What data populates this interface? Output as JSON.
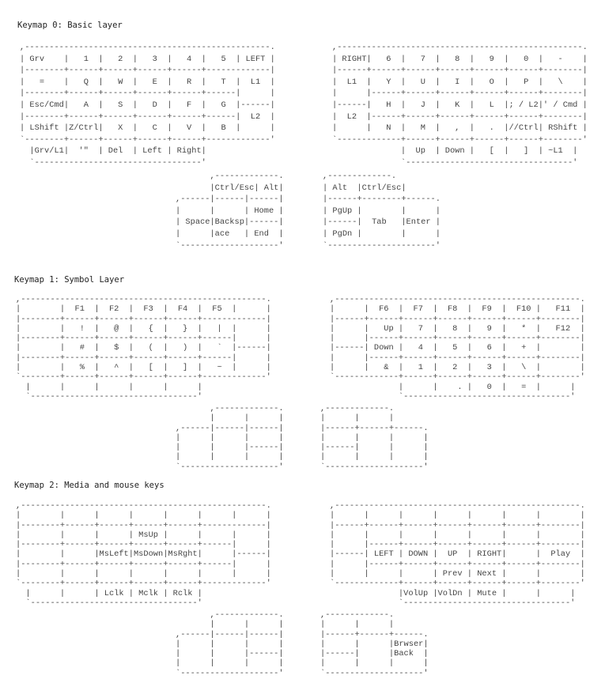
{
  "keymaps": [
    {
      "title": "Keymap 0: Basic layer",
      "left": [
        ",--------------------------------------------------.",
        "| Grv    |   1  |   2  |   3  |   4  |   5  | LEFT |",
        "|--------+------+------+------+------+-------------|",
        "|   =    |   Q  |   W  |   E  |   R  |   T  |  L1  |",
        "|--------+------+------+------+------+------|      |",
        "| Esc/Cmd|   A  |   S  |   D  |   F  |   G  |------|",
        "|--------+------+------+------+------+------|  L2  |",
        "| LShift |Z/Ctrl|   X  |   C  |   V  |   B  |      |",
        "`--------+------+------+------+------+-------------'",
        "  |Grv/L1|  '\"  | Del  | Left | Right|",
        "  `----------------------------------'"
      ],
      "right": [
        ",--------------------------------------------------.",
        "| RIGHT|   6  |   7  |   8  |   9  |   0  |   -    |",
        "|------+------+------+------+------+------+--------|",
        "|  L1  |   Y  |   U  |   I  |   O  |   P  |   \\    |",
        "|      |------+------+------+------+------+--------|",
        "|------|   H  |   J  |   K  |   L  |; / L2|' / Cmd |",
        "|  L2  |------+------+------+------+------+--------|",
        "|      |   N  |   M  |   ,  |   .  |//Ctrl| RShift |",
        "`-------------+------+------+------+------+--------'",
        "              |  Up  | Down |   [  |   ]  | ~L1  |",
        "              `----------------------------------'"
      ],
      "left_thumb": [
        "       ,-------------.",
        "       |Ctrl/Esc| Alt|",
        ",------|------|------|",
        "|      |      | Home |",
        "| Space|Backsp|------|",
        "|      |ace   | End  |",
        "`--------------------'"
      ],
      "right_thumb": [
        ",-------------.",
        "| Alt  |Ctrl/Esc|",
        "|------+--------+------.",
        "| PgUp |        |      |",
        "|------|  Tab   |Enter |",
        "| PgDn |        |      |",
        "`----------------------'"
      ]
    },
    {
      "title": "Keymap 1: Symbol Layer",
      "left": [
        ",--------------------------------------------------.",
        "|        |  F1  |  F2  |  F3  |  F4  |  F5  |      |",
        "|--------+------+------+------+------+-------------|",
        "|        |   !  |   @  |   {  |   }  |   |  |      |",
        "|--------+------+------+------+------+------|      |",
        "|        |   #  |   $  |   (  |   )  |   `  |------|",
        "|--------+------+------+------+------+------|      |",
        "|        |   %  |   ^  |   [  |   ]  |   ~  |      |",
        "`--------+------+------+------+------+-------------'",
        "  |      |      |      |      |      |",
        "  `----------------------------------'"
      ],
      "right": [
        ",--------------------------------------------------.",
        "|      |  F6  |  F7  |  F8  |  F9  |  F10 |   F11  |",
        "|------+------+------+------+------+------+--------|",
        "|      |   Up |   7  |   8  |   9  |   *  |   F12  |",
        "|      |------+------+------+------+------+--------|",
        "|------| Down |   4  |   5  |   6  |   +  |        |",
        "|      |------+------+------+------+------+--------|",
        "|      |   &  |   1  |   2  |   3  |   \\  |        |",
        "`-------------+------+------+------+------+--------'",
        "              |      |    . |   0  |   =  |      |",
        "              `----------------------------------'"
      ],
      "left_thumb": [
        "       ,-------------.",
        "       |      |      |",
        ",------|------|------|",
        "|      |      |      |",
        "|      |      |------|",
        "|      |      |      |",
        "`--------------------'"
      ],
      "right_thumb": [
        ",-------------.",
        "|      |      |",
        "|------+------+------.",
        "|      |      |      |",
        "|------|      |      |",
        "|      |      |      |",
        "`--------------------'"
      ]
    },
    {
      "title": "Keymap 2: Media and mouse keys",
      "left": [
        ",--------------------------------------------------.",
        "|        |      |      |      |      |      |      |",
        "|--------+------+------+------+------+-------------|",
        "|        |      |      | MsUp |      |      |      |",
        "|--------+------+------+------+------+------|      |",
        "|        |      |MsLeft|MsDown|MsRght|      |------|",
        "|--------+------+------+------+------+------|      |",
        "|        |      |      |      |      |      |      |",
        "`--------+------+------+------+------+-------------'",
        "  |      |      | Lclk | Mclk | Rclk |",
        "  `----------------------------------'"
      ],
      "right": [
        ",--------------------------------------------------.",
        "|      |      |      |      |      |      |        |",
        "|------+------+------+------+------+------+--------|",
        "|      |      |      |      |      |      |        |",
        "|      |------+------+------+------+------+--------|",
        "|------| LEFT | DOWN |  UP  | RIGHT|      |  Play  |",
        "|      |------+------+------+------+------+--------|",
        "|      |      |      | Prev | Next |      |        |",
        "`-------------+------+------+------+------+--------'",
        "              |VolUp |VolDn | Mute |      |      |",
        "              `----------------------------------'"
      ],
      "left_thumb": [
        "       ,-------------.",
        "       |      |      |",
        ",------|------|------|",
        "|      |      |      |",
        "|      |      |------|",
        "|      |      |      |",
        "`--------------------'"
      ],
      "right_thumb": [
        ",-------------.",
        "|      |      |",
        "|------+------+------.",
        "|      |      |Brwser|",
        "|------|      |Back  |",
        "|      |      |      |",
        "`--------------------'"
      ]
    }
  ]
}
